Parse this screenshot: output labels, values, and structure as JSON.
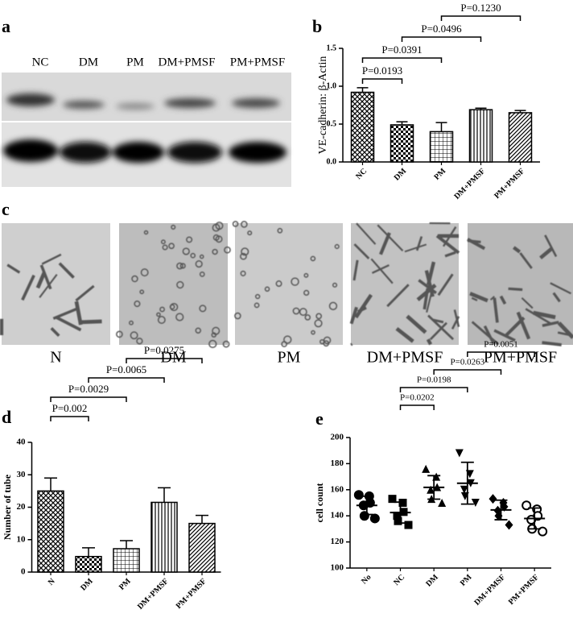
{
  "figure": {
    "panel_a": {
      "label": "a",
      "lanes": [
        "NC",
        "DM",
        "PM",
        "DM+PMSF",
        "PM+PMSF"
      ]
    },
    "panel_c": {
      "label": "c",
      "conditions": [
        "N",
        "DM",
        "PM",
        "DM+PMSF",
        "PM+PMSF"
      ]
    }
  },
  "chart_data": [
    {
      "type": "bar",
      "panel_label": "b",
      "ylabel": "VE-cadherin: β-Actin",
      "categories": [
        "NC",
        "DM",
        "PM",
        "DM+PMSF",
        "PM+PMSF"
      ],
      "values": [
        0.92,
        0.49,
        0.4,
        0.69,
        0.65
      ],
      "errors": [
        0.06,
        0.04,
        0.12,
        0.02,
        0.03
      ],
      "patterns": [
        "crosshatch",
        "checker",
        "grid",
        "vertical",
        "diagonal"
      ],
      "color": "#000000",
      "ylim": [
        0,
        1.5
      ],
      "yticks": [
        {
          "value": 0,
          "label": "0.0"
        },
        {
          "value": 0.5,
          "label": "0.5"
        },
        {
          "value": 1,
          "label": "1.0"
        },
        {
          "value": 1.5,
          "label": "1.5"
        }
      ],
      "comparisons": [
        {
          "label": "P=0.0193",
          "pair": [
            "NC",
            "DM"
          ]
        },
        {
          "label": "P=0.0391",
          "pair": [
            "NC",
            "PM"
          ]
        },
        {
          "label": "P=0.0496",
          "pair": [
            "DM",
            "DM+PMSF"
          ]
        },
        {
          "label": "P=0.1230",
          "pair": [
            "PM",
            "PM+PMSF"
          ]
        }
      ]
    },
    {
      "type": "bar",
      "panel_label": "d",
      "ylabel": "Number of tube",
      "categories": [
        "N",
        "DM",
        "PM",
        "DM+PMSF",
        "PM+PMSF"
      ],
      "values": [
        25,
        4.8,
        7.2,
        21.5,
        15
      ],
      "errors": [
        4,
        2.7,
        2.5,
        4.5,
        2.5
      ],
      "patterns": [
        "crosshatch",
        "checker",
        "grid",
        "vertical",
        "diagonal"
      ],
      "color": "#000000",
      "ylim": [
        0,
        40
      ],
      "yticks": [
        0,
        10,
        20,
        30,
        40
      ],
      "comparisons": [
        {
          "label": "P=0.002",
          "pair": [
            "N",
            "DM"
          ]
        },
        {
          "label": "P=0.0029",
          "pair": [
            "N",
            "PM"
          ]
        },
        {
          "label": "P=0.0065",
          "pair": [
            "DM",
            "DM+PMSF"
          ]
        },
        {
          "label": "P=0.0275",
          "pair": [
            "PM",
            "PM+PMSF"
          ]
        }
      ]
    },
    {
      "type": "dot",
      "panel_label": "e",
      "ylabel": "cell count",
      "categories": [
        "No",
        "NC",
        "DM",
        "PM",
        "DM+PMSF",
        "PM+PMSF"
      ],
      "points": [
        [
          156,
          155,
          150,
          148,
          140,
          138
        ],
        [
          153,
          150,
          143,
          140,
          136,
          133
        ],
        [
          176,
          170,
          162,
          160,
          153,
          150
        ],
        [
          188,
          172,
          165,
          160,
          155,
          150
        ],
        [
          153,
          150,
          147,
          144,
          140,
          133
        ],
        [
          148,
          145,
          140,
          137,
          130,
          128
        ]
      ],
      "means": [
        148,
        142.5,
        161.8,
        165,
        144.5,
        138
      ],
      "sds": [
        7,
        8,
        9,
        16,
        7.5,
        8
      ],
      "markers": [
        "circle",
        "square",
        "triangle-up",
        "triangle-down",
        "diamond",
        "circle-open"
      ],
      "color": "#000000",
      "ylim": [
        100,
        200
      ],
      "yticks": [
        100,
        120,
        140,
        160,
        180,
        200
      ],
      "comparisons": [
        {
          "label": "P=0.0202",
          "pair": [
            "NC",
            "DM"
          ]
        },
        {
          "label": "P=0.0198",
          "pair": [
            "NC",
            "PM"
          ]
        },
        {
          "label": "P=0.0263",
          "pair": [
            "DM",
            "DM+PMSF"
          ]
        },
        {
          "label": "P=0.0051",
          "pair": [
            "PM",
            "PM+PMSF"
          ]
        }
      ]
    }
  ]
}
